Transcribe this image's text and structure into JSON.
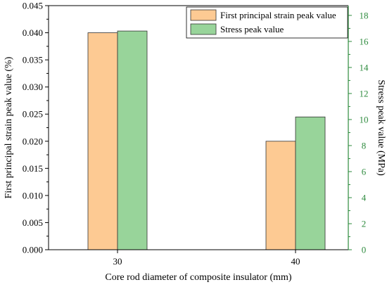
{
  "chart_data": {
    "type": "bar",
    "categories": [
      "30",
      "40"
    ],
    "xlabel": "Core rod diameter of composite insulator (mm)",
    "series": [
      {
        "name": "First principal strain peak value",
        "axis": "left",
        "values": [
          0.04,
          0.02
        ],
        "color": "#FDCA93",
        "stroke": "#333333"
      },
      {
        "name": "Stress peak value",
        "axis": "right",
        "values": [
          16.8,
          10.2
        ],
        "color": "#98D49A",
        "stroke": "#333333"
      }
    ],
    "y_left": {
      "label": "First principal strain peak value (%)",
      "min": 0,
      "max": 0.045,
      "ticks": [
        "0.000",
        "0.005",
        "0.010",
        "0.015",
        "0.020",
        "0.025",
        "0.030",
        "0.035",
        "0.040",
        "0.045"
      ],
      "color": "#000000"
    },
    "y_right": {
      "label": "Stress peak value (MPa)",
      "min": 0,
      "max": 18.75,
      "ticks": [
        "0",
        "2",
        "4",
        "6",
        "8",
        "10",
        "12",
        "14",
        "16",
        "18"
      ],
      "color": "#2E8B3E"
    },
    "legend_position": "top-right",
    "grid": false
  }
}
